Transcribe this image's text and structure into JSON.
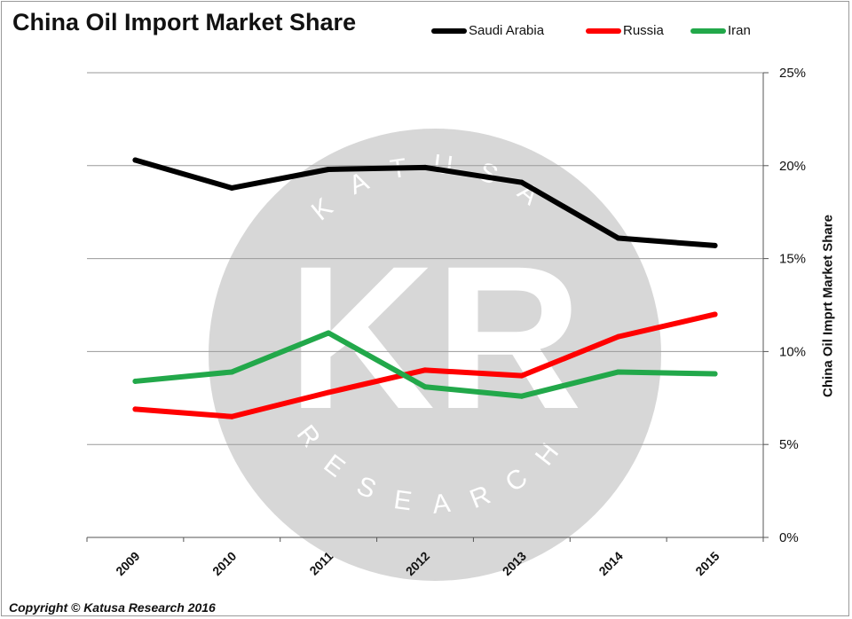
{
  "chart_data": {
    "type": "line",
    "title": "China Oil Import Market Share",
    "ylabel": "China Oil Impört Market Share",
    "ylabel_display": "China Oil Imprt Market Share",
    "x": [
      "2009",
      "2010",
      "2011",
      "2012",
      "2013",
      "2014",
      "2015"
    ],
    "ylim": [
      0,
      25
    ],
    "yticks": [
      "0%",
      "5%",
      "10%",
      "15%",
      "20%",
      "25%"
    ],
    "y_axis_side": "right",
    "grid": true,
    "legend_position": "top",
    "series": [
      {
        "name": "Saudi Arabia",
        "color": "#000000",
        "values": [
          20.3,
          18.8,
          19.8,
          19.9,
          19.1,
          16.1,
          15.7
        ]
      },
      {
        "name": "Russia",
        "color": "#ff0000",
        "values": [
          6.9,
          6.5,
          7.8,
          9.0,
          8.7,
          10.8,
          12.0
        ]
      },
      {
        "name": "Iran",
        "color": "#22a84a",
        "values": [
          8.4,
          8.9,
          11.0,
          8.1,
          7.6,
          8.9,
          8.8
        ]
      }
    ]
  },
  "watermark": {
    "letters": "KR",
    "top_text": "KATUSA",
    "bottom_text": "RESEARCH"
  },
  "footer": {
    "copyright": "Copyright © Katusa Research 2016"
  }
}
